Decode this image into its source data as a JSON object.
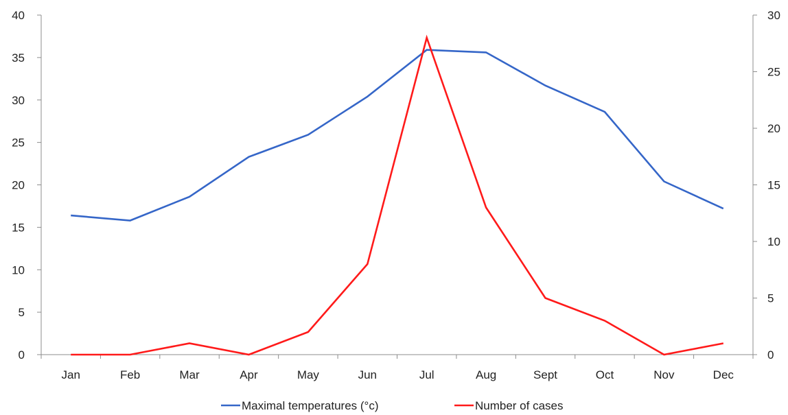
{
  "chart_data": {
    "type": "line",
    "categories": [
      "Jan",
      "Feb",
      "Mar",
      "Apr",
      "May",
      "Jun",
      "Jul",
      "Aug",
      "Sept",
      "Oct",
      "Nov",
      "Dec"
    ],
    "series": [
      {
        "name": "Maximal temperatures (°c)",
        "axis": "left",
        "color": "#3566C8",
        "values": [
          16.4,
          15.8,
          18.6,
          23.3,
          25.9,
          30.4,
          35.9,
          35.6,
          31.7,
          28.6,
          20.4,
          17.2
        ]
      },
      {
        "name": "Number of cases",
        "axis": "right",
        "color": "#FF1A1A",
        "values": [
          0,
          0,
          1,
          0,
          2,
          8,
          28,
          13,
          5,
          3,
          0,
          1
        ]
      }
    ],
    "y_left": {
      "ylim": [
        0,
        40
      ],
      "ticks": [
        "0",
        "5",
        "10",
        "15",
        "20",
        "25",
        "30",
        "35",
        "40"
      ]
    },
    "y_right": {
      "ylim": [
        0,
        30
      ],
      "ticks": [
        "0",
        "5",
        "10",
        "15",
        "20",
        "25",
        "30"
      ]
    },
    "title": "",
    "xlabel": "",
    "ylabel": "",
    "grid": false,
    "legend_position": "bottom-center"
  }
}
